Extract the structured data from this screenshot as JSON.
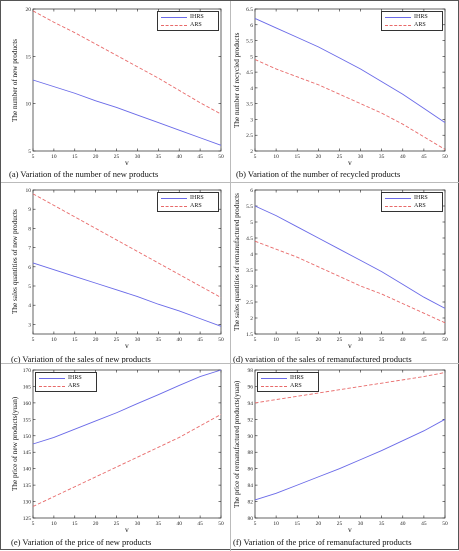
{
  "chart_data": [
    {
      "type": "line",
      "caption": "(a)   Variation of the number of new products",
      "xlabel": "v",
      "ylabel": "The number of new products",
      "xlim": [
        5,
        50
      ],
      "ylim": [
        5,
        20
      ],
      "xticks": [
        5,
        10,
        15,
        20,
        25,
        30,
        35,
        40,
        45,
        50
      ],
      "yticks": [
        5,
        10,
        15,
        20
      ],
      "legend": "top-right",
      "series": [
        {
          "name": "IHRS",
          "color": "#6a6ae8",
          "dash": "solid",
          "x": [
            5,
            10,
            15,
            20,
            25,
            30,
            35,
            40,
            45,
            50
          ],
          "y": [
            12.5,
            11.8,
            11.1,
            10.3,
            9.6,
            8.8,
            8.0,
            7.2,
            6.4,
            5.6
          ]
        },
        {
          "name": "ARS",
          "color": "#e86a6a",
          "dash": "dashed",
          "x": [
            5,
            10,
            15,
            20,
            25,
            30,
            35,
            40,
            45,
            50
          ],
          "y": [
            19.8,
            18.6,
            17.5,
            16.3,
            15.1,
            13.9,
            12.7,
            11.4,
            10.1,
            8.9
          ]
        }
      ]
    },
    {
      "type": "line",
      "caption": "(b)   Variation of the number of recycled products",
      "xlabel": "v",
      "ylabel": "The number of recycled products",
      "xlim": [
        5,
        50
      ],
      "ylim": [
        2,
        6.5
      ],
      "xticks": [
        5,
        10,
        15,
        20,
        25,
        30,
        35,
        40,
        45,
        50
      ],
      "yticks": [
        2,
        2.5,
        3,
        3.5,
        4,
        4.5,
        5,
        5.5,
        6,
        6.5
      ],
      "legend": "top-right",
      "series": [
        {
          "name": "IHRS",
          "color": "#6a6ae8",
          "dash": "solid",
          "x": [
            5,
            10,
            15,
            20,
            25,
            30,
            35,
            40,
            45,
            50
          ],
          "y": [
            6.2,
            5.9,
            5.6,
            5.3,
            4.95,
            4.6,
            4.2,
            3.8,
            3.35,
            2.9
          ]
        },
        {
          "name": "ARS",
          "color": "#e86a6a",
          "dash": "dashed",
          "x": [
            5,
            10,
            15,
            20,
            25,
            30,
            35,
            40,
            45,
            50
          ],
          "y": [
            4.9,
            4.6,
            4.35,
            4.1,
            3.8,
            3.5,
            3.2,
            2.85,
            2.45,
            2.05
          ]
        }
      ]
    },
    {
      "type": "line",
      "caption": "(c)   Variation of the sales of new products",
      "xlabel": "v",
      "ylabel": "The sales quantities of new products",
      "xlim": [
        5,
        50
      ],
      "ylim": [
        2.5,
        10
      ],
      "xticks": [
        5,
        10,
        15,
        20,
        25,
        30,
        35,
        40,
        45,
        50
      ],
      "yticks": [
        3,
        4,
        5,
        6,
        7,
        8,
        9,
        10
      ],
      "legend": "top-right",
      "series": [
        {
          "name": "IHRS",
          "color": "#6a6ae8",
          "dash": "solid",
          "x": [
            5,
            10,
            15,
            20,
            25,
            30,
            35,
            40,
            45,
            50
          ],
          "y": [
            6.2,
            5.85,
            5.5,
            5.15,
            4.8,
            4.45,
            4.05,
            3.7,
            3.3,
            2.9
          ]
        },
        {
          "name": "ARS",
          "color": "#e86a6a",
          "dash": "dashed",
          "x": [
            5,
            10,
            15,
            20,
            25,
            30,
            35,
            40,
            45,
            50
          ],
          "y": [
            9.8,
            9.2,
            8.6,
            8.0,
            7.4,
            6.8,
            6.2,
            5.6,
            5.0,
            4.4
          ]
        }
      ]
    },
    {
      "type": "line",
      "caption": "(d)   variation of the sales of remanufactured products",
      "xlabel": "v",
      "ylabel": "The sales quantities of remanufactured products",
      "xlim": [
        5,
        50
      ],
      "ylim": [
        1.5,
        6
      ],
      "xticks": [
        5,
        10,
        15,
        20,
        25,
        30,
        35,
        40,
        45,
        50
      ],
      "yticks": [
        1.5,
        2,
        2.5,
        3,
        3.5,
        4,
        4.5,
        5,
        5.5,
        6
      ],
      "legend": "top-right",
      "series": [
        {
          "name": "IHRS",
          "color": "#6a6ae8",
          "dash": "solid",
          "x": [
            5,
            10,
            15,
            20,
            25,
            30,
            35,
            40,
            45,
            50
          ],
          "y": [
            5.5,
            5.2,
            4.85,
            4.5,
            4.15,
            3.8,
            3.45,
            3.05,
            2.65,
            2.3
          ]
        },
        {
          "name": "ARS",
          "color": "#e86a6a",
          "dash": "dashed",
          "x": [
            5,
            10,
            15,
            20,
            25,
            30,
            35,
            40,
            45,
            50
          ],
          "y": [
            4.4,
            4.15,
            3.9,
            3.6,
            3.3,
            3.0,
            2.75,
            2.45,
            2.15,
            1.85
          ]
        }
      ]
    },
    {
      "type": "line",
      "caption": "(e) Variation of the price of new products",
      "xlabel": "v",
      "ylabel": "The price of new products(yuan)",
      "xlim": [
        5,
        50
      ],
      "ylim": [
        125,
        170
      ],
      "xticks": [
        5,
        10,
        15,
        20,
        25,
        30,
        35,
        40,
        45,
        50
      ],
      "yticks": [
        125,
        130,
        135,
        140,
        145,
        150,
        155,
        160,
        165,
        170
      ],
      "legend": "top-left",
      "series": [
        {
          "name": "IHRS",
          "color": "#6a6ae8",
          "dash": "solid",
          "x": [
            5,
            10,
            15,
            20,
            25,
            30,
            35,
            40,
            45,
            50
          ],
          "y": [
            147.5,
            149.5,
            152,
            154.5,
            157,
            159.8,
            162.5,
            165.3,
            168,
            170
          ]
        },
        {
          "name": "ARS",
          "color": "#e86a6a",
          "dash": "dashed",
          "x": [
            5,
            10,
            15,
            20,
            25,
            30,
            35,
            40,
            45,
            50
          ],
          "y": [
            128.5,
            131.5,
            134.5,
            137.5,
            140.5,
            143.5,
            146.5,
            149.5,
            153,
            156.5
          ]
        }
      ]
    },
    {
      "type": "line",
      "caption": "(f) Variation of the price of remanufactured products",
      "xlabel": "v",
      "ylabel": "The price of remanufactured products(yuan)",
      "xlim": [
        5,
        50
      ],
      "ylim": [
        80,
        98
      ],
      "xticks": [
        5,
        10,
        15,
        20,
        25,
        30,
        35,
        40,
        45,
        50
      ],
      "yticks": [
        80,
        82,
        84,
        86,
        88,
        90,
        92,
        94,
        96,
        98
      ],
      "legend": "top-left",
      "series": [
        {
          "name": "IHRS",
          "color": "#6a6ae8",
          "dash": "solid",
          "x": [
            5,
            10,
            15,
            20,
            25,
            30,
            35,
            40,
            45,
            50
          ],
          "y": [
            82.2,
            83.0,
            84.0,
            85.0,
            86.0,
            87.1,
            88.2,
            89.4,
            90.6,
            92.0
          ]
        },
        {
          "name": "ARS",
          "color": "#e86a6a",
          "dash": "dashed",
          "x": [
            5,
            10,
            15,
            20,
            25,
            30,
            35,
            40,
            45,
            50
          ],
          "y": [
            94.0,
            94.4,
            94.8,
            95.2,
            95.6,
            96.0,
            96.4,
            96.8,
            97.2,
            97.7
          ]
        }
      ]
    }
  ]
}
